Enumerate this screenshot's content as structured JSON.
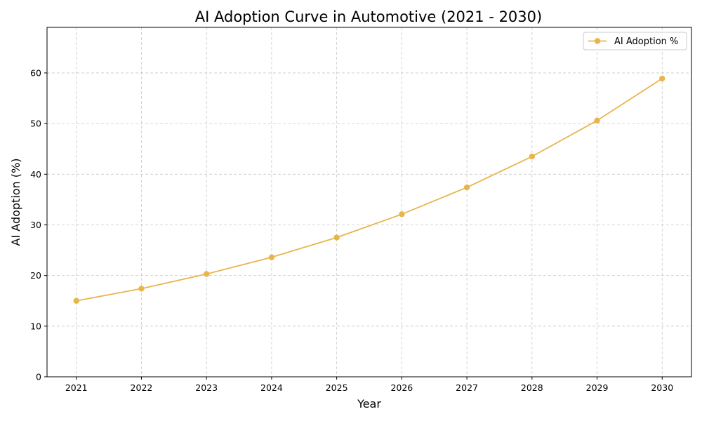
{
  "chart_data": {
    "type": "line",
    "title": "AI Adoption Curve in Automotive (2021 - 2030)",
    "xlabel": "Year",
    "ylabel": "AI Adoption (%)",
    "x": [
      2021,
      2022,
      2023,
      2024,
      2025,
      2026,
      2027,
      2028,
      2029,
      2030
    ],
    "series": [
      {
        "name": "AI Adoption %",
        "values": [
          15.0,
          17.4,
          20.3,
          23.6,
          27.5,
          32.1,
          37.4,
          43.5,
          50.6,
          58.9
        ],
        "color": "#E8B54D",
        "marker": "circle"
      }
    ],
    "xlim": [
      2020.55,
      2030.45
    ],
    "ylim": [
      0,
      69
    ],
    "xticks": [
      "2021",
      "2022",
      "2023",
      "2024",
      "2025",
      "2026",
      "2027",
      "2028",
      "2029",
      "2030"
    ],
    "yticks": [
      "0",
      "10",
      "20",
      "30",
      "40",
      "50",
      "60"
    ],
    "grid": true,
    "grid_style": "dashed",
    "legend_position": "top-right"
  }
}
